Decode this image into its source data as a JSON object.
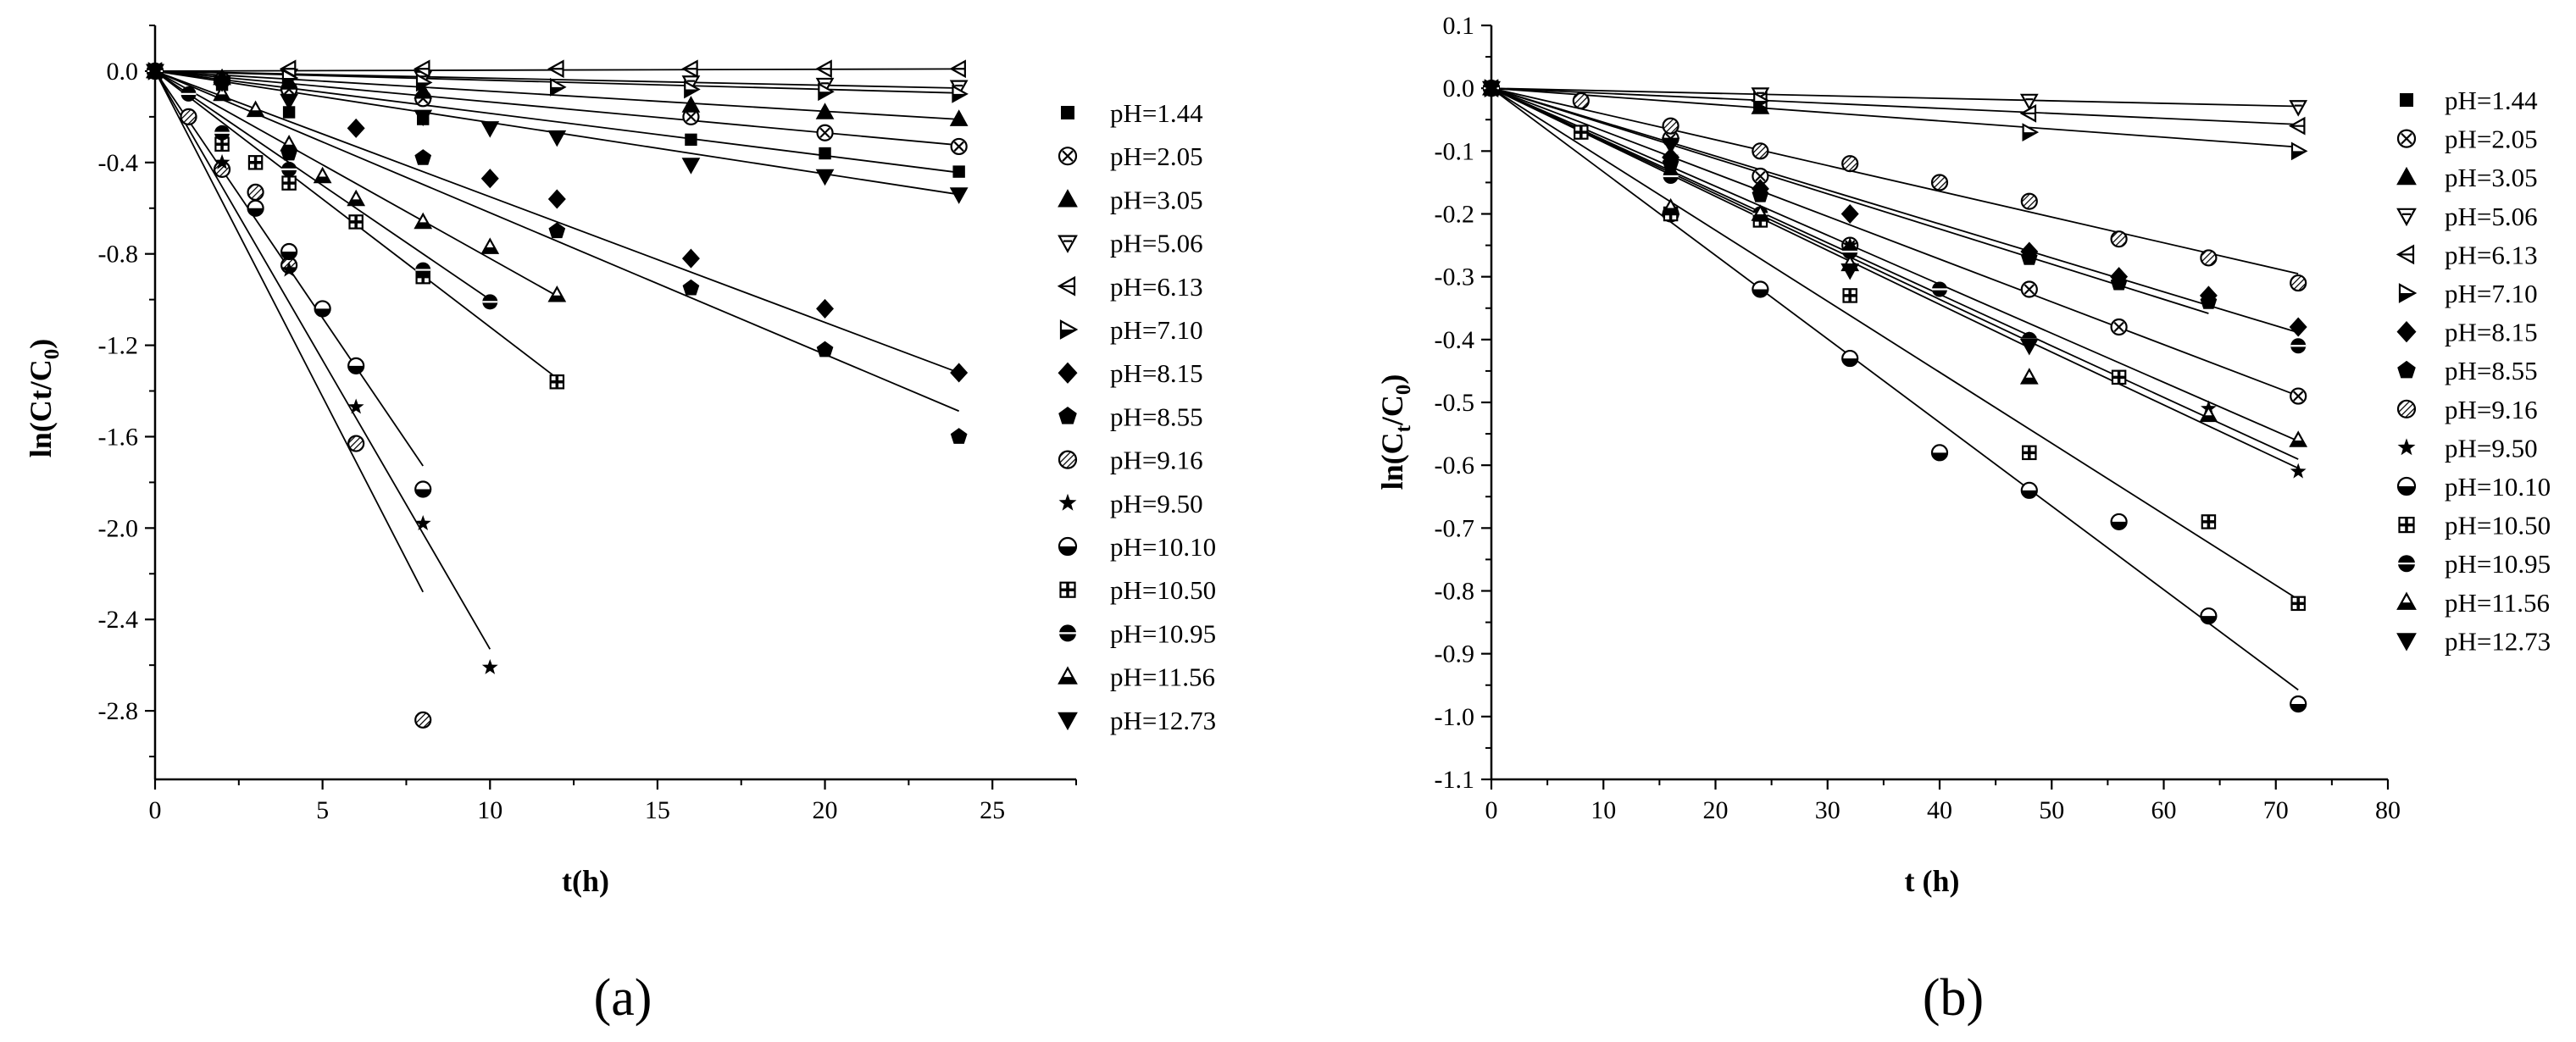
{
  "chart_data": [
    {
      "type": "scatter",
      "panel_label": "(a)",
      "xlabel": "t(h)",
      "ylabel": "ln(Ct/C0)",
      "ylabel_main": "ln(Ct/C",
      "ylabel_sub": "0",
      "ylabel_close": ")",
      "xlim": [
        0,
        27.5
      ],
      "ylim": [
        -3.1,
        0.2
      ],
      "xticks": [
        0,
        5,
        10,
        15,
        20,
        25
      ],
      "yticks": [
        0.0,
        -0.4,
        -0.8,
        -1.2,
        -1.6,
        -2.0,
        -2.4,
        -2.8
      ],
      "ytick_labels": [
        "0.0",
        "-0.4",
        "-0.8",
        "-1.2",
        "-1.6",
        "-2.0",
        "-2.4",
        "-2.8"
      ],
      "series": [
        {
          "name": "pH=1.44",
          "marker": "square",
          "x": [
            0,
            2,
            4,
            8,
            16,
            20,
            24
          ],
          "y": [
            0,
            -0.06,
            -0.18,
            -0.21,
            -0.3,
            -0.36,
            -0.44
          ],
          "fit_slope": -0.0185
        },
        {
          "name": "pH=2.05",
          "marker": "circle-x",
          "x": [
            0,
            2,
            4,
            8,
            16,
            20,
            24
          ],
          "y": [
            0,
            -0.04,
            -0.08,
            -0.12,
            -0.2,
            -0.27,
            -0.33
          ],
          "fit_slope": -0.0135
        },
        {
          "name": "pH=3.05",
          "marker": "triangle-up",
          "x": [
            0,
            2,
            4,
            8,
            16,
            20,
            24
          ],
          "y": [
            0,
            -0.03,
            -0.05,
            -0.09,
            -0.15,
            -0.18,
            -0.21
          ],
          "fit_slope": -0.0088
        },
        {
          "name": "pH=5.06",
          "marker": "triangle-down-open",
          "x": [
            0,
            4,
            8,
            16,
            20,
            24
          ],
          "y": [
            0,
            -0.02,
            -0.03,
            -0.05,
            -0.06,
            -0.07
          ],
          "fit_slope": -0.0031
        },
        {
          "name": "pH=6.13",
          "marker": "triangle-left-half",
          "x": [
            0,
            4,
            8,
            12,
            16,
            20,
            24
          ],
          "y": [
            0,
            0.01,
            0.01,
            0.01,
            0.01,
            0.01,
            0.01
          ],
          "fit_slope": 0.0004
        },
        {
          "name": "pH=7.10",
          "marker": "triangle-right-half",
          "x": [
            0,
            4,
            8,
            12,
            16,
            20,
            24
          ],
          "y": [
            0,
            -0.03,
            -0.05,
            -0.07,
            -0.08,
            -0.09,
            -0.1
          ],
          "fit_slope": -0.004
        },
        {
          "name": "pH=8.15",
          "marker": "diamond",
          "x": [
            0,
            2,
            6,
            10,
            12,
            16,
            20,
            24
          ],
          "y": [
            0,
            -0.05,
            -0.25,
            -0.47,
            -0.56,
            -0.82,
            -1.04,
            -1.32
          ],
          "fit_slope": -0.055
        },
        {
          "name": "pH=8.55",
          "marker": "pentagon",
          "x": [
            0,
            4,
            8,
            12,
            16,
            20,
            24
          ],
          "y": [
            0,
            -0.36,
            -0.38,
            -0.7,
            -0.95,
            -1.22,
            -1.6
          ],
          "fit_slope": -0.062
        },
        {
          "name": "pH=9.16",
          "marker": "circle-hatch",
          "x": [
            0,
            1,
            2,
            3,
            4,
            6,
            8
          ],
          "y": [
            0,
            -0.2,
            -0.43,
            -0.53,
            -0.85,
            -1.63,
            -2.84
          ],
          "fit_slope": -0.285
        },
        {
          "name": "pH=9.50",
          "marker": "star",
          "x": [
            0,
            2,
            4,
            6,
            8,
            10
          ],
          "y": [
            0,
            -0.4,
            -0.87,
            -1.47,
            -1.98,
            -2.61
          ],
          "fit_slope": -0.253
        },
        {
          "name": "pH=10.10",
          "marker": "circle-half",
          "x": [
            0,
            3,
            4,
            5,
            6,
            8
          ],
          "y": [
            0,
            -0.6,
            -0.79,
            -1.04,
            -1.29,
            -1.83
          ],
          "fit_slope": -0.216
        },
        {
          "name": "pH=10.50",
          "marker": "square-cross",
          "x": [
            0,
            2,
            3,
            4,
            6,
            8,
            12
          ],
          "y": [
            0,
            -0.32,
            -0.4,
            -0.49,
            -0.66,
            -0.9,
            -1.36
          ],
          "fit_slope": -0.112
        },
        {
          "name": "pH=10.95",
          "marker": "circle-bar",
          "x": [
            0,
            1,
            2,
            4,
            8,
            10
          ],
          "y": [
            0,
            -0.1,
            -0.27,
            -0.43,
            -0.87,
            -1.01
          ],
          "fit_slope": -0.1
        },
        {
          "name": "pH=11.56",
          "marker": "triangle-bar",
          "x": [
            0,
            2,
            3,
            4,
            5,
            6,
            8,
            10,
            12
          ],
          "y": [
            0,
            -0.1,
            -0.17,
            -0.32,
            -0.46,
            -0.56,
            -0.66,
            -0.77,
            -0.98
          ],
          "fit_slope": -0.082
        },
        {
          "name": "pH=12.73",
          "marker": "triangle-down",
          "x": [
            0,
            2,
            4,
            8,
            10,
            12,
            16,
            20,
            24
          ],
          "y": [
            0,
            -0.05,
            -0.13,
            -0.2,
            -0.25,
            -0.29,
            -0.41,
            -0.46,
            -0.54
          ],
          "fit_slope": -0.0225
        }
      ]
    },
    {
      "type": "scatter",
      "panel_label": "(b)",
      "xlabel": "t (h)",
      "ylabel": "ln(Ct/C0)",
      "ylabel_main": "ln(C",
      "ylabel_sub1": "t",
      "ylabel_mid": "/C",
      "ylabel_sub2": "0",
      "ylabel_close": ")",
      "xlim": [
        0,
        80
      ],
      "ylim": [
        -1.1,
        0.1
      ],
      "xticks": [
        0,
        10,
        20,
        30,
        40,
        50,
        60,
        70,
        80
      ],
      "yticks": [
        0.1,
        0.0,
        -0.1,
        -0.2,
        -0.3,
        -0.4,
        -0.5,
        -0.6,
        -0.7,
        -0.8,
        -0.9,
        -1.0,
        -1.1
      ],
      "ytick_labels": [
        "0.1",
        "0.0",
        "-0.1",
        "-0.2",
        "-0.3",
        "-0.4",
        "-0.5",
        "-0.6",
        "-0.7",
        "-0.8",
        "-0.9",
        "-1.0",
        "-1.1"
      ],
      "series": [
        {
          "name": "pH=1.44",
          "marker": "square",
          "x": [
            0
          ],
          "y": [
            0
          ],
          "fit_slope": null
        },
        {
          "name": "pH=2.05",
          "marker": "circle-x",
          "x": [
            0,
            16,
            24,
            32,
            48,
            56,
            72
          ],
          "y": [
            0,
            -0.08,
            -0.14,
            -0.25,
            -0.32,
            -0.38,
            -0.49
          ],
          "fit_slope": -0.0068
        },
        {
          "name": "pH=3.05",
          "marker": "triangle-up",
          "x": [
            0,
            24
          ],
          "y": [
            0,
            -0.03
          ],
          "fit_slope": null
        },
        {
          "name": "pH=5.06",
          "marker": "triangle-down-open",
          "x": [
            0,
            24,
            48,
            72
          ],
          "y": [
            0,
            -0.01,
            -0.02,
            -0.03
          ],
          "fit_slope": -0.0004
        },
        {
          "name": "pH=6.13",
          "marker": "triangle-left-half",
          "x": [
            0,
            24,
            48,
            72
          ],
          "y": [
            0,
            -0.02,
            -0.04,
            -0.06
          ],
          "fit_slope": -0.0008
        },
        {
          "name": "pH=7.10",
          "marker": "triangle-right-half",
          "x": [
            0,
            24,
            48,
            72
          ],
          "y": [
            0,
            -0.02,
            -0.07,
            -0.1
          ],
          "fit_slope": -0.0013
        },
        {
          "name": "pH=8.15",
          "marker": "diamond",
          "x": [
            0,
            16,
            24,
            32,
            48,
            56,
            64,
            72
          ],
          "y": [
            0,
            -0.11,
            -0.16,
            -0.2,
            -0.26,
            -0.3,
            -0.33,
            -0.38
          ],
          "fit_slope": -0.0054
        },
        {
          "name": "pH=8.55",
          "marker": "pentagon",
          "x": [
            0,
            16,
            24,
            48,
            56,
            64
          ],
          "y": [
            0,
            -0.12,
            -0.17,
            -0.27,
            -0.31,
            -0.34
          ],
          "fit_slope": -0.0056
        },
        {
          "name": "pH=9.16",
          "marker": "circle-hatch",
          "x": [
            0,
            8,
            16,
            24,
            32,
            40,
            48,
            56,
            64,
            72
          ],
          "y": [
            0,
            -0.02,
            -0.06,
            -0.1,
            -0.12,
            -0.15,
            -0.18,
            -0.24,
            -0.27,
            -0.31
          ],
          "fit_slope": -0.0041
        },
        {
          "name": "pH=9.50",
          "marker": "star",
          "x": [
            0,
            16,
            32,
            48,
            64,
            72
          ],
          "y": [
            0,
            -0.11,
            -0.25,
            -0.4,
            -0.51,
            -0.61
          ],
          "fit_slope": -0.0084
        },
        {
          "name": "pH=10.10",
          "marker": "circle-half",
          "x": [
            0,
            16,
            24,
            32,
            40,
            48,
            56,
            64,
            72
          ],
          "y": [
            0,
            -0.2,
            -0.32,
            -0.43,
            -0.58,
            -0.64,
            -0.69,
            -0.84,
            -0.98
          ],
          "fit_slope": -0.0133
        },
        {
          "name": "pH=10.50",
          "marker": "square-cross",
          "x": [
            0,
            8,
            16,
            24,
            32,
            48,
            56,
            64,
            72
          ],
          "y": [
            0,
            -0.07,
            -0.2,
            -0.21,
            -0.33,
            -0.58,
            -0.46,
            -0.69,
            -0.82
          ],
          "fit_slope": -0.0113
        },
        {
          "name": "pH=10.95",
          "marker": "circle-bar",
          "x": [
            0,
            16,
            24,
            32,
            40,
            48,
            72
          ],
          "y": [
            0,
            -0.14,
            -0.2,
            -0.26,
            -0.32,
            -0.4,
            -0.41
          ],
          "fit_slope": -0.0078
        },
        {
          "name": "pH=11.56",
          "marker": "triangle-bar",
          "x": [
            0,
            16,
            24,
            32,
            48,
            64,
            72
          ],
          "y": [
            0,
            -0.19,
            -0.2,
            -0.28,
            -0.46,
            -0.52,
            -0.56
          ],
          "fit_slope": -0.0082
        },
        {
          "name": "pH=12.73",
          "marker": "triangle-down",
          "x": [
            0,
            16,
            32,
            48
          ],
          "y": [
            0,
            -0.09,
            -0.29,
            -0.41
          ],
          "fit_slope": -0.0086
        }
      ]
    }
  ]
}
